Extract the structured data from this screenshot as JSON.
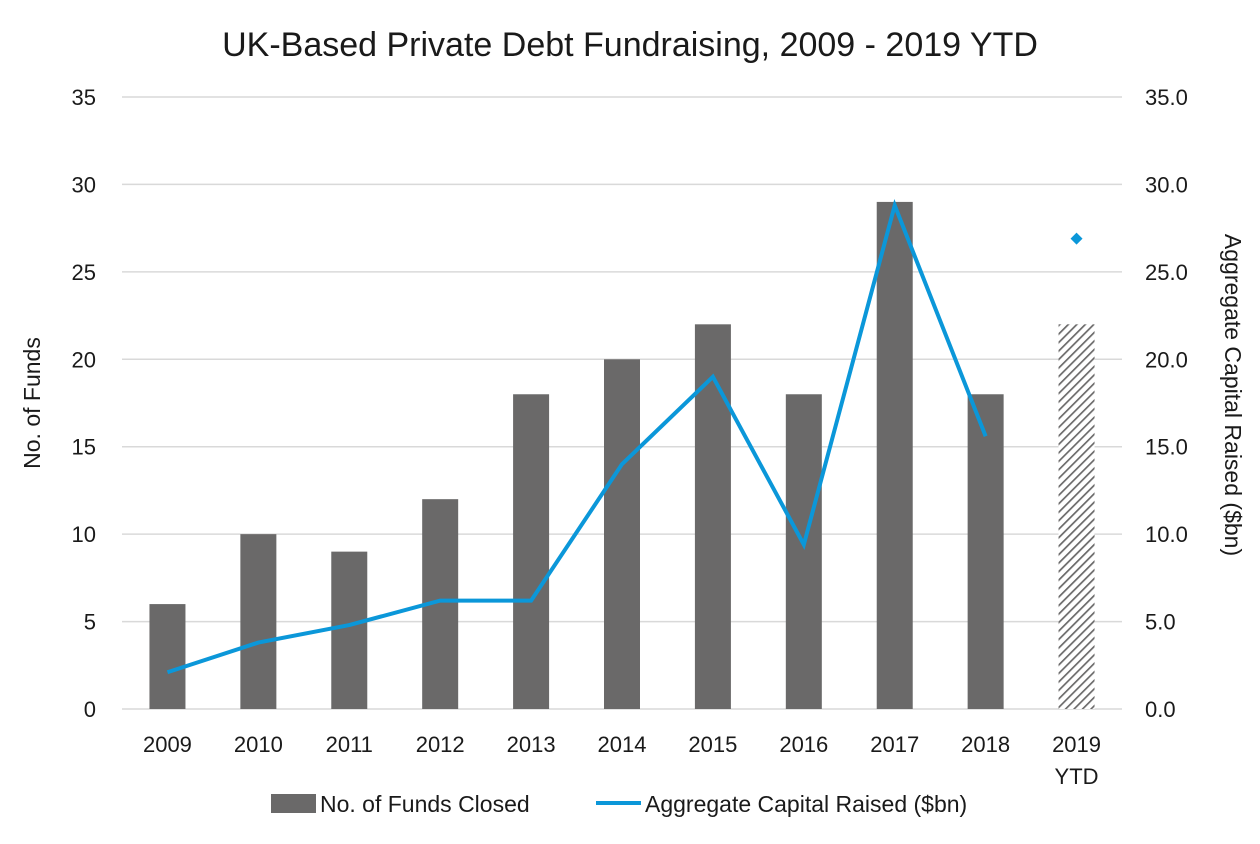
{
  "chart_data": {
    "type": "bar",
    "title": "UK-Based Private Debt Fundraising, 2009 - 2019 YTD",
    "categories": [
      [
        "2009"
      ],
      [
        "2010"
      ],
      [
        "2011"
      ],
      [
        "2012"
      ],
      [
        "2013"
      ],
      [
        "2014"
      ],
      [
        "2015"
      ],
      [
        "2016"
      ],
      [
        "2017"
      ],
      [
        "2018"
      ],
      [
        "2019",
        "YTD"
      ]
    ],
    "series": [
      {
        "name": "No. of Funds Closed",
        "type": "bar",
        "axis": "left",
        "color": "#6a6969",
        "values": [
          6,
          10,
          9,
          12,
          18,
          20,
          22,
          18,
          29,
          18,
          22
        ],
        "hatched_last": true
      },
      {
        "name": "Aggregate Capital Raised ($bn)",
        "type": "line",
        "axis": "right",
        "color": "#0b97d9",
        "values": [
          2.1,
          3.8,
          4.8,
          6.2,
          6.2,
          14.0,
          19.0,
          9.4,
          28.8,
          15.6,
          26.9
        ],
        "last_point_marker_only": true
      }
    ],
    "ylabel": "No. of Funds",
    "y2label": "Aggregate Capital Raised ($bn)",
    "ylim": [
      0,
      35
    ],
    "y2lim": [
      0,
      35
    ],
    "yticks": [
      "0",
      "5",
      "10",
      "15",
      "20",
      "25",
      "30",
      "35"
    ],
    "y2ticks": [
      "0.0",
      "5.0",
      "10.0",
      "15.0",
      "20.0",
      "25.0",
      "30.0",
      "35.0"
    ],
    "grid": true,
    "legend_position": "bottom"
  }
}
